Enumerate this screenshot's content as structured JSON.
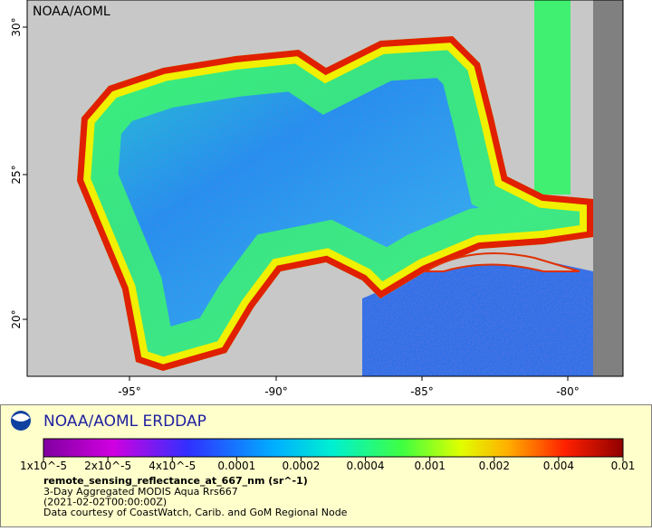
{
  "map": {
    "label": "NOAA/AOML",
    "lat_ticks": [
      "30°",
      "25°",
      "20°"
    ],
    "lon_ticks": [
      "-95°",
      "-90°",
      "-85°",
      "-80°"
    ]
  },
  "legend": {
    "brand": "NOAA/AOML ERDDAP",
    "colorbar_labels": [
      "1x10^-5",
      "2x10^-5",
      "4x10^-5",
      "0.0001",
      "0.0002",
      "0.0004",
      "0.001",
      "0.002",
      "0.004",
      "0.01"
    ],
    "variable": "remote_sensing_reflectance_at_667_nm (sr^-1)",
    "lines": [
      "3-Day Aggregated MODIS Aqua Rrs667",
      "(2021-02-02T00:00:00Z)",
      "Data courtesy of CoastWatch, Carib. and GoM Regional Node"
    ]
  }
}
